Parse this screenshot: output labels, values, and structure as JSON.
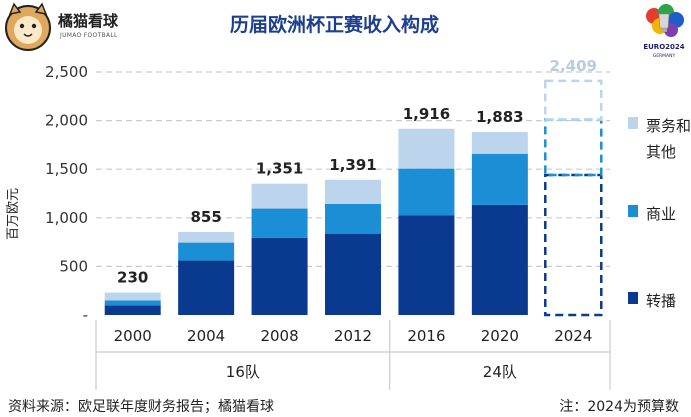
{
  "brand": {
    "name": "橘猫看球",
    "subtitle": "JUMAO FOOTBALL",
    "logo_icon": "cat-mascot-icon"
  },
  "event_logo": {
    "icon": "euro2024-trophy-icon",
    "line1": "EURO2024",
    "line2": "GERMANY"
  },
  "footer": {
    "source": "资料来源：欧足联年度财务报告；橘猫看球",
    "note": "注：2024为预算数"
  },
  "colors": {
    "tickets": "#bcd5ec",
    "commercial": "#1b8ed6",
    "broadcast": "#093a8f",
    "title": "#1d3f8f",
    "grid": "#cccccc",
    "forecast_label": "#b7cce3"
  },
  "chart_data": {
    "type": "bar",
    "stacked": true,
    "title": "历届欧洲杯正赛收入构成",
    "ylabel": "百万欧元",
    "ylim": [
      0,
      2500
    ],
    "yticks": [
      "-",
      "500",
      "1,000",
      "1,500",
      "2,000",
      "2,500"
    ],
    "categories": [
      "2000",
      "2004",
      "2008",
      "2012",
      "2016",
      "2020",
      "2024"
    ],
    "groups": [
      {
        "label": "16队",
        "categories": [
          "2000",
          "2004",
          "2008",
          "2012"
        ]
      },
      {
        "label": "24队",
        "categories": [
          "2016",
          "2020",
          "2024"
        ]
      }
    ],
    "series": [
      {
        "name": "转播",
        "values": [
          100,
          560,
          795,
          837,
          1024,
          1134,
          1440
        ]
      },
      {
        "name": "商业",
        "values": [
          50,
          185,
          300,
          305,
          482,
          525,
          570
        ]
      },
      {
        "name": "票务和其他",
        "values": [
          80,
          110,
          256,
          249,
          410,
          224,
          399
        ]
      }
    ],
    "totals": [
      "230",
      "855",
      "1,351",
      "1,391",
      "1,916",
      "1,883",
      "2,409"
    ],
    "forecast_category": "2024",
    "legend": [
      "票务和\n其他",
      "商业",
      "转播"
    ],
    "legend_position": "right"
  }
}
